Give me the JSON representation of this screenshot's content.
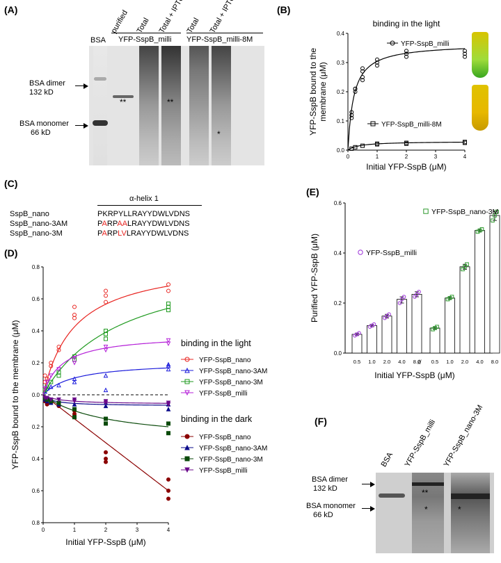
{
  "panels": {
    "A": "(A)",
    "B": "(B)",
    "C": "(C)",
    "D": "(D)",
    "E": "(E)",
    "F": "(F)"
  },
  "gelA": {
    "lanes": [
      "BSA",
      "purified",
      "Total",
      "Total + IPTG",
      "Total",
      "Total + IPTG"
    ],
    "groups": [
      "YFP-SspB_milli",
      "YFP-SspB_milli-8M"
    ],
    "labels": {
      "dimer": "BSA dimer",
      "dimer_kd": "132 kD",
      "monomer": "BSA monomer",
      "monomer_kd": "66 kD"
    },
    "marks": {
      "dstar1": "**",
      "dstar2": "**",
      "star": "*"
    }
  },
  "gelF": {
    "lanes": [
      "BSA",
      "YFP-SspB_milli",
      "YFP-SspB_nano-3M"
    ],
    "labels": {
      "dimer": "BSA dimer",
      "dimer_kd": "132 kD",
      "monomer": "BSA monomer",
      "monomer_kd": "66 kD"
    },
    "marks": {
      "dstar": "**",
      "star1": "*",
      "star2": "*"
    }
  },
  "seqC": {
    "header": "α-helix 1",
    "rows": [
      {
        "name": "SspB_nano",
        "seq": "PKRPYLLRAYYDWLVDNS",
        "red": []
      },
      {
        "name": "SspB_nano-3AM",
        "seq": "PARPAALRAYYDWLVDNS",
        "red": [
          1,
          4,
          5
        ]
      },
      {
        "name": "SspB_nano-3M",
        "seq": "PARPLVLRAYYDWLVDNS",
        "red": [
          1,
          4,
          5
        ]
      }
    ]
  },
  "chart_data": [
    {
      "id": "B",
      "type": "scatter",
      "title": "binding in the light",
      "xlabel": "Initial YFP-SspB (μM)",
      "ylabel": "YFP-SspB bound to the membrane (μM)",
      "xlim": [
        0,
        4
      ],
      "ylim": [
        0,
        0.4
      ],
      "xticks": [
        0,
        1,
        2,
        3,
        4
      ],
      "yticks": [
        0.0,
        0.1,
        0.2,
        0.3,
        0.4
      ],
      "series": [
        {
          "name": "YFP-SspB_milli",
          "marker": "circle",
          "color": "#000000",
          "points": [
            [
              0.125,
              0.12
            ],
            [
              0.125,
              0.11
            ],
            [
              0.125,
              0.13
            ],
            [
              0.25,
              0.21
            ],
            [
              0.25,
              0.2
            ],
            [
              0.25,
              0.21
            ],
            [
              0.5,
              0.24
            ],
            [
              0.5,
              0.25
            ],
            [
              0.5,
              0.27
            ],
            [
              0.5,
              0.28
            ],
            [
              1,
              0.29
            ],
            [
              1,
              0.3
            ],
            [
              1,
              0.31
            ],
            [
              2,
              0.32
            ],
            [
              2,
              0.33
            ],
            [
              2,
              0.34
            ],
            [
              4,
              0.32
            ],
            [
              4,
              0.33
            ],
            [
              4,
              0.34
            ]
          ],
          "fit": {
            "bmax": 0.365,
            "kd": 0.2
          }
        },
        {
          "name": "YFP-SspB_milli-8M",
          "marker": "square",
          "color": "#000000",
          "points": [
            [
              0.125,
              0.005
            ],
            [
              0.25,
              0.01
            ],
            [
              0.5,
              0.015
            ],
            [
              1,
              0.02
            ],
            [
              1,
              0.022
            ],
            [
              2,
              0.025
            ],
            [
              2,
              0.022
            ],
            [
              4,
              0.028
            ],
            [
              4,
              0.025
            ]
          ],
          "fit": {
            "bmax": 0.03,
            "kd": 0.4
          }
        }
      ]
    },
    {
      "id": "D",
      "type": "scatter",
      "xlabel": "Initial YFP-SspB (μM)",
      "ylabel": "YFP-SspB bound to the membrane (μM)",
      "xlim": [
        0,
        4
      ],
      "ylim": [
        -0.8,
        0.8
      ],
      "xticks": [
        0,
        1,
        2,
        3,
        4
      ],
      "yticks": [
        0.8,
        0.6,
        0.4,
        0.2,
        0.0,
        0.2,
        0.4,
        0.6,
        0.8
      ],
      "ytickvals": [
        0.8,
        0.6,
        0.4,
        0.2,
        0.0,
        -0.2,
        -0.4,
        -0.6,
        -0.8
      ],
      "legend_light_title": "binding in the light",
      "legend_dark_title": "binding in the dark",
      "series": [
        {
          "name": "YFP-SspB_nano",
          "group": "light",
          "marker": "circle-open",
          "color": "#e8231f",
          "points": [
            [
              0.06,
              0.08
            ],
            [
              0.06,
              0.12
            ],
            [
              0.125,
              0.1
            ],
            [
              0.25,
              0.18
            ],
            [
              0.25,
              0.2
            ],
            [
              0.5,
              0.28
            ],
            [
              0.5,
              0.3
            ],
            [
              1,
              0.48
            ],
            [
              1,
              0.5
            ],
            [
              1,
              0.55
            ],
            [
              2,
              0.58
            ],
            [
              2,
              0.62
            ],
            [
              2,
              0.65
            ],
            [
              4,
              0.65
            ],
            [
              4,
              0.69
            ]
          ],
          "fit": {
            "bmax": 0.85,
            "kd": 1.0
          }
        },
        {
          "name": "YFP-SspB_nano-3AM",
          "group": "light",
          "marker": "triangle-open",
          "color": "#1a1adb",
          "points": [
            [
              0.06,
              0.02
            ],
            [
              0.125,
              0.04
            ],
            [
              0.25,
              0.05
            ],
            [
              0.5,
              0.06
            ],
            [
              1,
              0.08
            ],
            [
              1,
              0.1
            ],
            [
              2,
              0.12
            ],
            [
              2,
              0.03
            ],
            [
              4,
              0.18
            ],
            [
              4,
              0.19
            ],
            [
              4,
              0.16
            ]
          ],
          "fit": {
            "bmax": 0.21,
            "kd": 1.0
          }
        },
        {
          "name": "YFP-SspB_nano-3M",
          "group": "light",
          "marker": "square-open",
          "color": "#1f9a1f",
          "points": [
            [
              0.06,
              0.03
            ],
            [
              0.125,
              0.05
            ],
            [
              0.25,
              0.08
            ],
            [
              0.5,
              0.12
            ],
            [
              0.5,
              0.14
            ],
            [
              1,
              0.22
            ],
            [
              1,
              0.24
            ],
            [
              2,
              0.35
            ],
            [
              2,
              0.38
            ],
            [
              2,
              0.4
            ],
            [
              4,
              0.55
            ],
            [
              4,
              0.57
            ],
            [
              4,
              0.53
            ]
          ],
          "fit": {
            "bmax": 0.88,
            "kd": 2.5
          }
        },
        {
          "name": "YFP-SspB_milli",
          "group": "light",
          "marker": "triangle-down-open",
          "color": "#b41fd8",
          "points": [
            [
              0.06,
              0.04
            ],
            [
              0.125,
              0.08
            ],
            [
              0.25,
              0.12
            ],
            [
              0.5,
              0.16
            ],
            [
              1,
              0.2
            ],
            [
              1,
              0.23
            ],
            [
              2,
              0.28
            ],
            [
              2,
              0.3
            ],
            [
              4,
              0.32
            ],
            [
              4,
              0.34
            ]
          ],
          "fit": {
            "bmax": 0.38,
            "kd": 0.6
          }
        },
        {
          "name": "YFP-SspB_nano",
          "group": "dark",
          "marker": "circle",
          "color": "#8b0000",
          "points": [
            [
              0.06,
              -0.04
            ],
            [
              0.125,
              -0.06
            ],
            [
              0.25,
              -0.05
            ],
            [
              0.5,
              -0.07
            ],
            [
              1,
              -0.1
            ],
            [
              1,
              -0.12
            ],
            [
              2,
              -0.36
            ],
            [
              2,
              -0.4
            ],
            [
              2,
              -0.42
            ],
            [
              4,
              -0.53
            ],
            [
              4,
              -0.6
            ],
            [
              4,
              -0.65
            ]
          ],
          "fit": {
            "slope": -0.15
          }
        },
        {
          "name": "YFP-SspB_nano-3AM",
          "group": "dark",
          "marker": "triangle",
          "color": "#0a0a8a",
          "points": [
            [
              0.06,
              -0.03
            ],
            [
              0.125,
              -0.04
            ],
            [
              0.25,
              -0.05
            ],
            [
              0.5,
              -0.06
            ],
            [
              1,
              -0.06
            ],
            [
              2,
              -0.07
            ],
            [
              2,
              -0.05
            ],
            [
              4,
              -0.06
            ],
            [
              4,
              -0.09
            ]
          ],
          "fit": {
            "bmax": -0.07,
            "kd": 0.3
          }
        },
        {
          "name": "YFP-SspB_nano-3M",
          "group": "dark",
          "marker": "square",
          "color": "#0a4a0a",
          "points": [
            [
              0.06,
              -0.02
            ],
            [
              0.125,
              -0.03
            ],
            [
              0.25,
              -0.04
            ],
            [
              0.5,
              -0.05
            ],
            [
              1,
              -0.09
            ],
            [
              1,
              -0.14
            ],
            [
              2,
              -0.15
            ],
            [
              2,
              -0.18
            ],
            [
              4,
              -0.18
            ],
            [
              4,
              -0.24
            ]
          ],
          "fit": {
            "bmax": -0.3,
            "kd": 2.0
          }
        },
        {
          "name": "YFP-SspB_milli",
          "group": "dark",
          "marker": "triangle-down",
          "color": "#6a0a8a",
          "points": [
            [
              0.06,
              -0.02
            ],
            [
              0.125,
              -0.02
            ],
            [
              0.25,
              -0.03
            ],
            [
              0.5,
              -0.03
            ],
            [
              1,
              -0.03
            ],
            [
              1,
              -0.04
            ],
            [
              2,
              -0.04
            ],
            [
              2,
              -0.05
            ],
            [
              4,
              -0.05
            ],
            [
              4,
              -0.06
            ]
          ],
          "fit": {
            "bmax": -0.06,
            "kd": 0.5
          }
        }
      ]
    },
    {
      "id": "E",
      "type": "bar",
      "xlabel": "Initial YFP-SspB (μM)",
      "ylabel": "Purified YFP-SspB (μM)",
      "ylim": [
        0,
        0.6
      ],
      "yticks": [
        0.0,
        0.2,
        0.4,
        0.6
      ],
      "break_label": "//",
      "groups": [
        {
          "name": "YFP-SspB_milli",
          "color": "#9b30d8",
          "marker": "circle",
          "categories": [
            "0.5",
            "1.0",
            "2.0",
            "4.0",
            "8.0"
          ],
          "values": [
            0.075,
            0.11,
            0.148,
            0.215,
            0.235
          ],
          "points": [
            [
              0.07,
              0.075,
              0.08
            ],
            [
              0.105,
              0.11,
              0.115
            ],
            [
              0.14,
              0.148,
              0.155
            ],
            [
              0.2,
              0.215,
              0.225
            ],
            [
              0.225,
              0.235,
              0.245
            ]
          ]
        },
        {
          "name": "YFP-SspB_nano-3M",
          "color": "#2e9a2e",
          "marker": "square",
          "categories": [
            "0.5",
            "1.0",
            "2.0",
            "4.0",
            "8.0"
          ],
          "values": [
            0.1,
            0.22,
            0.345,
            0.49,
            0.55
          ],
          "points": [
            [
              0.095,
              0.1,
              0.105
            ],
            [
              0.215,
              0.22,
              0.225
            ],
            [
              0.335,
              0.345,
              0.355
            ],
            [
              0.485,
              0.49,
              0.495
            ],
            [
              0.53,
              0.55,
              0.565
            ]
          ]
        }
      ]
    }
  ]
}
